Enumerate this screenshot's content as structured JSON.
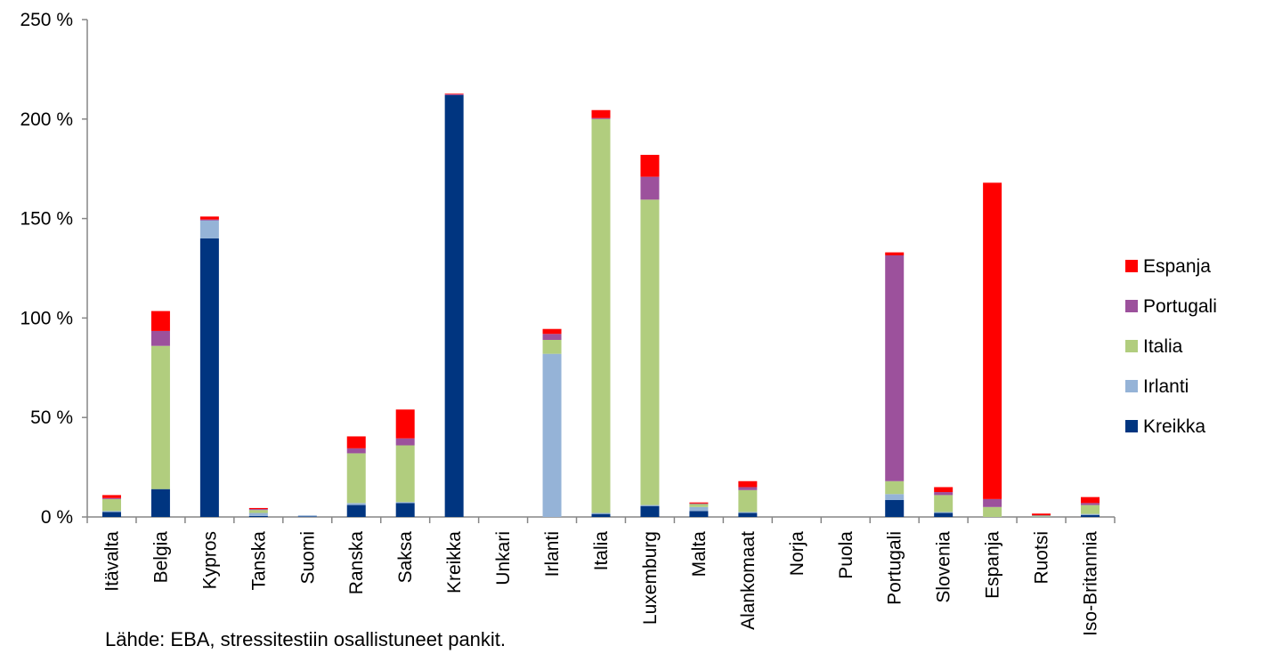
{
  "source_note": "Lähde: EBA, stressitestiin osallistuneet pankit.",
  "chart_data": {
    "type": "bar",
    "stacked": true,
    "categories": [
      "Itävalta",
      "Belgia",
      "Kypros",
      "Tanska",
      "Suomi",
      "Ranska",
      "Saksa",
      "Kreikka",
      "Unkari",
      "Irlanti",
      "Italia",
      "Luxemburg",
      "Malta",
      "Alankomaat",
      "Norja",
      "Puola",
      "Portugali",
      "Slovenia",
      "Espanja",
      "Ruotsi",
      "Iso-Britannia"
    ],
    "y_ticks": [
      "0 %",
      "50 %",
      "100 %",
      "150 %",
      "200 %",
      "250 %"
    ],
    "ylim": [
      0,
      250
    ],
    "grid": false,
    "legend_position": "right",
    "series": [
      {
        "name": "Kreikka",
        "color": "#003580",
        "values": [
          2.5,
          14,
          140,
          0.5,
          0.3,
          6,
          7,
          212,
          0,
          0,
          1.5,
          5.5,
          3,
          2,
          0,
          0,
          8.5,
          2,
          0,
          0,
          1
        ]
      },
      {
        "name": "Irlanti",
        "color": "#95b3d7",
        "values": [
          0.5,
          0,
          9,
          1.5,
          0.5,
          1,
          0.5,
          0,
          0,
          82,
          0.5,
          0.5,
          2,
          0.5,
          0,
          0,
          3,
          0.5,
          0,
          0.2,
          0.5
        ]
      },
      {
        "name": "Italia",
        "color": "#b1cd7e",
        "values": [
          6,
          72,
          0,
          1.5,
          0,
          25,
          28.5,
          0,
          0,
          7,
          198,
          153.5,
          1.5,
          11,
          0,
          0,
          6.5,
          8.5,
          5,
          0.5,
          4.5
        ]
      },
      {
        "name": "Portugali",
        "color": "#9c519c",
        "values": [
          0.5,
          7.5,
          0.5,
          0.5,
          0,
          2.5,
          3.5,
          0.5,
          0,
          3,
          0.5,
          11.5,
          0.3,
          1.5,
          0,
          0,
          113.5,
          1.5,
          4,
          0.2,
          1
        ]
      },
      {
        "name": "Espanja",
        "color": "#ff0000",
        "values": [
          1.5,
          10,
          1.5,
          0.5,
          0,
          6,
          14.5,
          0.3,
          0,
          2.5,
          4,
          11,
          0.5,
          3,
          0,
          0,
          1.5,
          2.5,
          159,
          0.8,
          3
        ]
      }
    ]
  }
}
